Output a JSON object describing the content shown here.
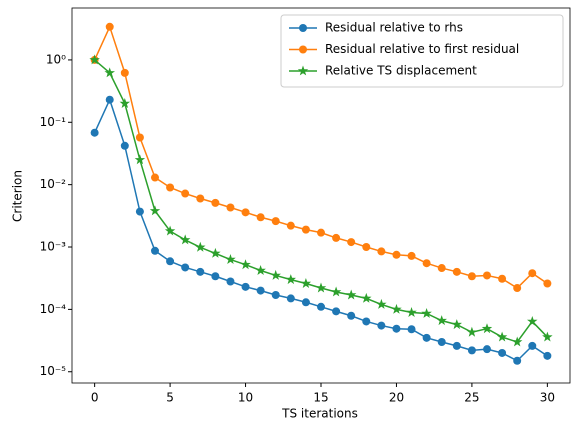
{
  "chart_data": {
    "type": "line",
    "xlabel": "TS iterations",
    "ylabel": "Criterion",
    "x": [
      0,
      1,
      2,
      3,
      4,
      5,
      6,
      7,
      8,
      9,
      10,
      11,
      12,
      13,
      14,
      15,
      16,
      17,
      18,
      19,
      20,
      21,
      22,
      23,
      24,
      25,
      26,
      27,
      28,
      29,
      30
    ],
    "series": [
      {
        "name": "Residual relative to rhs",
        "color": "#1f77b4",
        "marker": "o",
        "values": [
          0.068,
          0.23,
          0.042,
          0.0037,
          0.00087,
          0.00059,
          0.00047,
          0.0004,
          0.00034,
          0.00028,
          0.00023,
          0.0002,
          0.00017,
          0.00015,
          0.00013,
          0.00011,
          9.3e-05,
          7.9e-05,
          6.4e-05,
          5.5e-05,
          4.9e-05,
          4.8e-05,
          3.5e-05,
          3e-05,
          2.6e-05,
          2.2e-05,
          2.3e-05,
          2e-05,
          1.5e-05,
          2.6e-05,
          1.8e-05
        ]
      },
      {
        "name": "Residual relative to first residual",
        "color": "#ff7f0e",
        "marker": "o",
        "values": [
          1.0,
          3.4,
          0.62,
          0.057,
          0.013,
          0.009,
          0.0072,
          0.006,
          0.0051,
          0.0043,
          0.0036,
          0.003,
          0.0026,
          0.0022,
          0.0019,
          0.0017,
          0.0014,
          0.0012,
          0.001,
          0.00085,
          0.00075,
          0.00072,
          0.00055,
          0.00046,
          0.0004,
          0.00034,
          0.00035,
          0.00031,
          0.00022,
          0.00038,
          0.00026
        ]
      },
      {
        "name": "Relative TS displacement",
        "color": "#2ca02c",
        "marker": "*",
        "values": [
          1.0,
          0.62,
          0.2,
          0.025,
          0.0038,
          0.0018,
          0.0013,
          0.00099,
          0.00079,
          0.00063,
          0.00052,
          0.00042,
          0.00035,
          0.0003,
          0.00026,
          0.00022,
          0.00019,
          0.00017,
          0.00015,
          0.00012,
          0.0001,
          8.9e-05,
          8.6e-05,
          6.6e-05,
          5.7e-05,
          4.3e-05,
          4.9e-05,
          3.6e-05,
          3e-05,
          6.4e-05,
          3.6e-05
        ]
      }
    ],
    "xlim": [
      -1.5,
      31.5
    ],
    "xticks": [
      0,
      5,
      10,
      15,
      20,
      25,
      30
    ],
    "ylim": [
      6.6e-06,
      6.8
    ],
    "ylog": true,
    "yticks": [
      {
        "value": 1e-05,
        "label": "10⁻⁵"
      },
      {
        "value": 0.0001,
        "label": "10⁻⁴"
      },
      {
        "value": 0.001,
        "label": "10⁻³"
      },
      {
        "value": 0.01,
        "label": "10⁻²"
      },
      {
        "value": 0.1,
        "label": "10⁻¹"
      },
      {
        "value": 1,
        "label": "10⁰"
      }
    ],
    "legend": "upper right",
    "grid": false
  }
}
